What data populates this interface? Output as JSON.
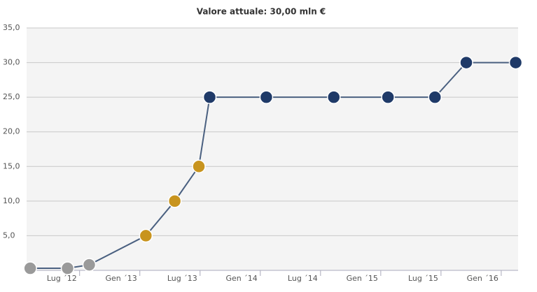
{
  "chart_data": {
    "type": "line",
    "title": "Valore attuale: 30,00 mln €",
    "x": [
      2012.09,
      2012.4,
      2012.58,
      2013.05,
      2013.29,
      2013.49,
      2013.58,
      2014.05,
      2014.61,
      2015.06,
      2015.45,
      2015.71,
      2016.12
    ],
    "series": [
      {
        "color": "#4a6080",
        "values": [
          0.3,
          0.3,
          0.8,
          5,
          10,
          15,
          25,
          25,
          25,
          25,
          25,
          30,
          30
        ],
        "point_colors": [
          "#9a9a9a",
          "#9a9a9a",
          "#9a9a9a",
          "#c8941e",
          "#c8941e",
          "#c8941e",
          "#1f3a68",
          "#1f3a68",
          "#1f3a68",
          "#1f3a68",
          "#1f3a68",
          "#1f3a68",
          "#1f3a68"
        ]
      }
    ],
    "xlim": [
      2012.06,
      2016.14
    ],
    "xticks": [
      {
        "value": 2012.5,
        "label": "Lug ´12"
      },
      {
        "value": 2013,
        "label": "Gen ´13"
      },
      {
        "value": 2013.5,
        "label": "Lug ´13"
      },
      {
        "value": 2014,
        "label": "Gen ´14"
      },
      {
        "value": 2014.5,
        "label": "Lug ´14"
      },
      {
        "value": 2015,
        "label": "Gen ´15"
      },
      {
        "value": 2015.5,
        "label": "Lug ´15"
      },
      {
        "value": 2016,
        "label": "Gen ´16"
      }
    ],
    "ylim": [
      0,
      35
    ],
    "yticks": [
      {
        "value": 5,
        "label": "5,0"
      },
      {
        "value": 10,
        "label": "10,0"
      },
      {
        "value": 15,
        "label": "15,0"
      },
      {
        "value": 20,
        "label": "20,0"
      },
      {
        "value": 25,
        "label": "25,0"
      },
      {
        "value": 30,
        "label": "30,0"
      },
      {
        "value": 35,
        "label": "35,0"
      }
    ],
    "grid": true
  }
}
